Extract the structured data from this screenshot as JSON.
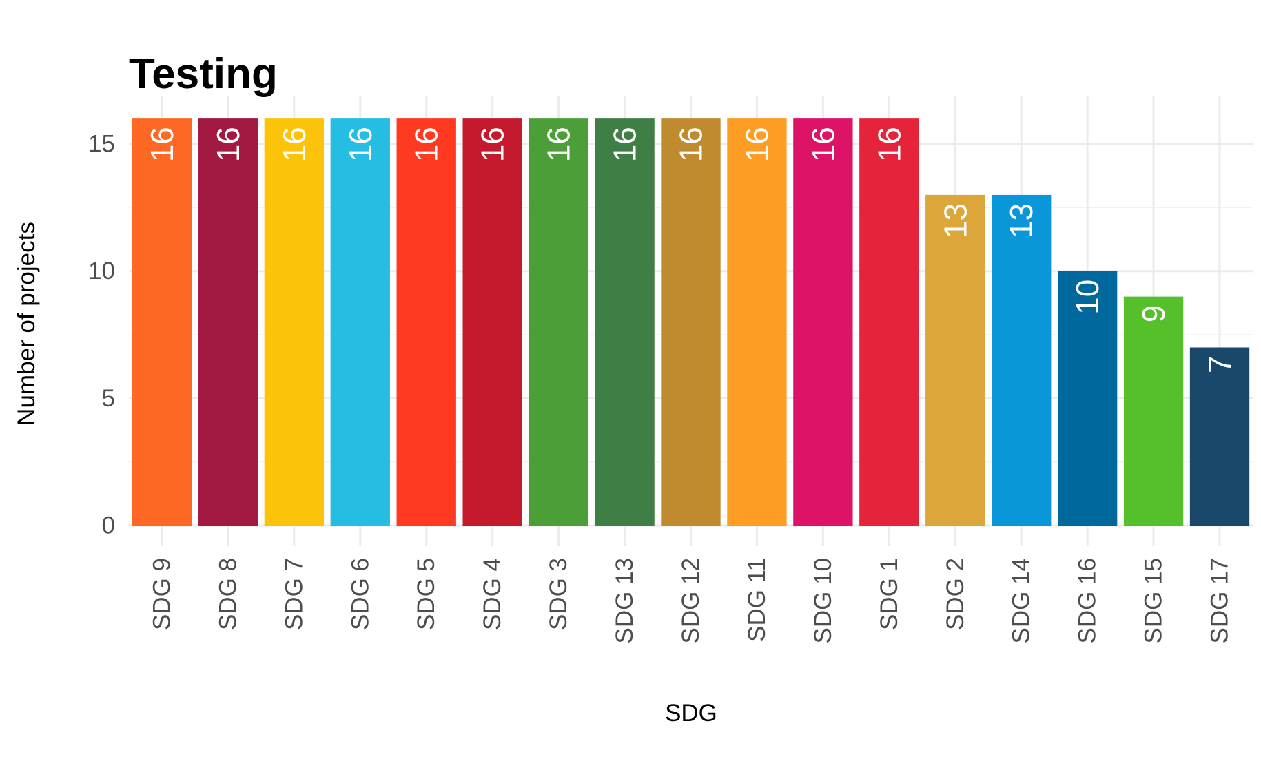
{
  "chart_data": {
    "type": "bar",
    "title": "Testing",
    "xlabel": "SDG",
    "ylabel": "Number of projects",
    "ylim": [
      0,
      16
    ],
    "yticks": [
      0,
      5,
      10,
      15
    ],
    "grid": true,
    "categories": [
      "SDG 9",
      "SDG 8",
      "SDG 7",
      "SDG 6",
      "SDG 5",
      "SDG 4",
      "SDG 3",
      "SDG 13",
      "SDG 12",
      "SDG 11",
      "SDG 10",
      "SDG 1",
      "SDG 2",
      "SDG 14",
      "SDG 16",
      "SDG 15",
      "SDG 17"
    ],
    "values": [
      16,
      16,
      16,
      16,
      16,
      16,
      16,
      16,
      16,
      16,
      16,
      16,
      13,
      13,
      10,
      9,
      7
    ],
    "colors": [
      "#FD6925",
      "#A21942",
      "#FCC30B",
      "#26BDE2",
      "#FF3A21",
      "#C5192D",
      "#4C9F38",
      "#3F7E44",
      "#BF8B2E",
      "#FD9D24",
      "#DD1367",
      "#E5243B",
      "#DDA63A",
      "#0A97D9",
      "#00689D",
      "#56C02B",
      "#19486A"
    ]
  }
}
